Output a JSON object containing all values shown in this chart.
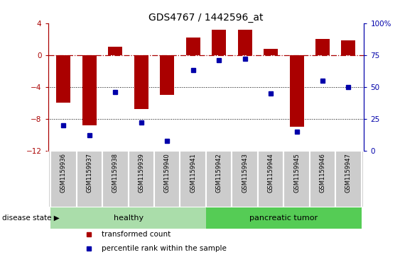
{
  "title": "GDS4767 / 1442596_at",
  "samples": [
    "GSM1159936",
    "GSM1159937",
    "GSM1159938",
    "GSM1159939",
    "GSM1159940",
    "GSM1159941",
    "GSM1159942",
    "GSM1159943",
    "GSM1159944",
    "GSM1159945",
    "GSM1159946",
    "GSM1159947"
  ],
  "transformed_count": [
    -6.0,
    -8.8,
    1.0,
    -6.8,
    -5.0,
    2.2,
    3.2,
    3.2,
    0.8,
    -9.0,
    2.0,
    1.8
  ],
  "percentile_rank": [
    20,
    12,
    46,
    22,
    8,
    63,
    71,
    72,
    45,
    15,
    55,
    50
  ],
  "bar_color": "#AA0000",
  "dot_color": "#0000AA",
  "ylim_left": [
    -12,
    4
  ],
  "ylim_right": [
    0,
    100
  ],
  "yticks_left": [
    4,
    0,
    -4,
    -8,
    -12
  ],
  "yticks_right": [
    100,
    75,
    50,
    25,
    0
  ],
  "groups": [
    {
      "label": "healthy",
      "start": 0,
      "end": 6,
      "color": "#aaddaa"
    },
    {
      "label": "pancreatic tumor",
      "start": 6,
      "end": 12,
      "color": "#55cc55"
    }
  ],
  "disease_state_label": "disease state",
  "legend_items": [
    {
      "label": "transformed count",
      "color": "#AA0000"
    },
    {
      "label": "percentile rank within the sample",
      "color": "#0000AA"
    }
  ],
  "background_color": "#ffffff",
  "grid_color": "#000000",
  "zero_line_color": "#AA0000",
  "label_area_color": "#cccccc",
  "label_border_color": "#ffffff"
}
